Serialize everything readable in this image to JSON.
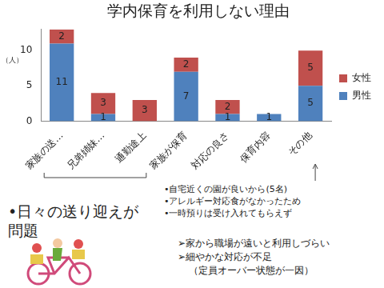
{
  "chart_data": {
    "type": "bar",
    "title": "学内保育を利用しない理由",
    "y_label": "（人）",
    "categories": [
      "家族の送…",
      "兄弟姉妹…",
      "通勤途上",
      "家族が保育",
      "対応の良さ",
      "保育内容",
      "その他"
    ],
    "series": [
      {
        "name": "男性",
        "color": "#4f81bd",
        "values": [
          11,
          1,
          null,
          7,
          1,
          1,
          5
        ]
      },
      {
        "name": "女性",
        "color": "#c0504d",
        "values": [
          2,
          3,
          3,
          2,
          2,
          null,
          5
        ]
      }
    ],
    "stacked": true,
    "data_labels": true,
    "legend": "right",
    "grid": false,
    "ylim": [
      0,
      13
    ],
    "yticks": [
      0,
      5,
      10
    ]
  },
  "annotations": {
    "problem": "•日々の送り迎えが問題",
    "other_reasons": [
      "•自宅近くの園が良いから(5名)",
      "•アレルギー対応食がなかったため",
      "•一時預りは受け入れてもらえず"
    ],
    "notes": [
      "➢家から職場が遠いと利用しづらい",
      "➢細やかな対応が不足",
      "（定員オーバー状態が一因）"
    ]
  }
}
